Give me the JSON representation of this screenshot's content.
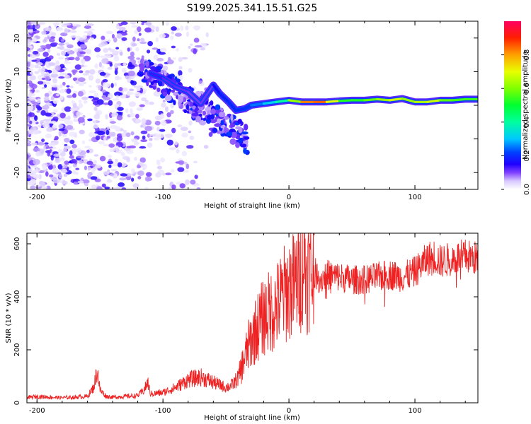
{
  "title": "S199.2025.341.15.51.G25",
  "chart_data": [
    {
      "type": "heatmap",
      "title": "S199.2025.341.15.51.G25",
      "xlabel": "Height of straight line (km)",
      "ylabel": "Frequency (Hz)",
      "xlim": [
        -208,
        150
      ],
      "ylim": [
        -25,
        25
      ],
      "xticks": [
        -200,
        -100,
        0,
        100
      ],
      "yticks": [
        -20,
        -10,
        0,
        10,
        20
      ],
      "xtick_labels": [
        "-200",
        "-100",
        "0",
        "100"
      ],
      "ytick_labels": [
        "-20",
        "-10",
        "0",
        "10",
        "20"
      ],
      "colorbar": {
        "label": "Normalized spectral amplitude",
        "range": [
          0,
          1
        ],
        "ticks": [
          0.0,
          0.2,
          0.4,
          0.6,
          0.8
        ],
        "tick_labels": [
          "0.0",
          "0.2",
          "0.4",
          "0.6",
          "0.8"
        ],
        "colormap": [
          "#ffffff",
          "#b9a2ff",
          "#5a00ff",
          "#0000ff",
          "#00c8ff",
          "#00ff50",
          "#a0ff00",
          "#ffff00",
          "#ff8000",
          "#ff0000",
          "#ff0060"
        ]
      },
      "ridge": [
        {
          "x": -110,
          "freq": 9.5,
          "amp": 0.15
        },
        {
          "x": -100,
          "freq": 8.0,
          "amp": 0.12
        },
        {
          "x": -90,
          "freq": 5.5,
          "amp": 0.12
        },
        {
          "x": -80,
          "freq": 4.0,
          "amp": 0.11
        },
        {
          "x": -70,
          "freq": 0.5,
          "amp": 0.1
        },
        {
          "x": -60,
          "freq": 6.0,
          "amp": 0.12
        },
        {
          "x": -55,
          "freq": 3.5,
          "amp": 0.18
        },
        {
          "x": -48,
          "freq": 1.0,
          "amp": 0.17
        },
        {
          "x": -42,
          "freq": -1.5,
          "amp": 0.2
        },
        {
          "x": -35,
          "freq": -1.0,
          "amp": 0.18
        },
        {
          "x": -30,
          "freq": 0.0,
          "amp": 0.22
        },
        {
          "x": -20,
          "freq": 0.5,
          "amp": 0.28
        },
        {
          "x": -10,
          "freq": 1.0,
          "amp": 0.35
        },
        {
          "x": 0,
          "freq": 1.5,
          "amp": 0.45
        },
        {
          "x": 10,
          "freq": 1.0,
          "amp": 0.8
        },
        {
          "x": 20,
          "freq": 1.0,
          "amp": 0.85
        },
        {
          "x": 30,
          "freq": 1.0,
          "amp": 0.85
        },
        {
          "x": 40,
          "freq": 1.3,
          "amp": 0.55
        },
        {
          "x": 50,
          "freq": 1.5,
          "amp": 0.5
        },
        {
          "x": 60,
          "freq": 1.5,
          "amp": 0.55
        },
        {
          "x": 70,
          "freq": 1.8,
          "amp": 0.6
        },
        {
          "x": 80,
          "freq": 1.5,
          "amp": 0.65
        },
        {
          "x": 90,
          "freq": 2.0,
          "amp": 0.7
        },
        {
          "x": 100,
          "freq": 1.0,
          "amp": 0.55
        },
        {
          "x": 110,
          "freq": 1.0,
          "amp": 0.75
        },
        {
          "x": 120,
          "freq": 1.5,
          "amp": 0.6
        },
        {
          "x": 130,
          "freq": 1.5,
          "amp": 0.55
        },
        {
          "x": 140,
          "freq": 1.8,
          "amp": 0.55
        },
        {
          "x": 150,
          "freq": 1.8,
          "amp": 0.55
        }
      ]
    },
    {
      "type": "line",
      "xlabel": "Height of straight line (km)",
      "ylabel": "SNR (10 * v/v)",
      "xlim": [
        -208,
        150
      ],
      "ylim": [
        0,
        640
      ],
      "xticks": [
        -200,
        -100,
        0,
        100
      ],
      "yticks": [
        0,
        200,
        400,
        600
      ],
      "xtick_labels": [
        "-200",
        "-100",
        "0",
        "100"
      ],
      "ytick_labels": [
        "0",
        "200",
        "400",
        "600"
      ],
      "series": [
        {
          "name": "SNR",
          "color": "#ee2222",
          "x": [
            -208,
            -200,
            -190,
            -180,
            -170,
            -160,
            -155,
            -152,
            -150,
            -145,
            -140,
            -130,
            -120,
            -115,
            -112,
            -110,
            -100,
            -90,
            -80,
            -70,
            -60,
            -50,
            -45,
            -40,
            -35,
            -30,
            -25,
            -20,
            -15,
            -10,
            -5,
            0,
            5,
            10,
            12,
            14,
            16,
            20,
            25,
            30,
            40,
            50,
            60,
            70,
            80,
            90,
            100,
            110,
            115,
            120,
            130,
            140,
            150
          ],
          "y": [
            20,
            25,
            22,
            20,
            22,
            25,
            60,
            130,
            50,
            25,
            22,
            25,
            28,
            50,
            80,
            35,
            40,
            60,
            90,
            100,
            80,
            60,
            70,
            100,
            180,
            250,
            300,
            340,
            360,
            380,
            420,
            450,
            470,
            520,
            600,
            500,
            520,
            500,
            470,
            490,
            480,
            470,
            470,
            480,
            490,
            480,
            500,
            550,
            560,
            540,
            550,
            560,
            550
          ]
        }
      ]
    }
  ]
}
